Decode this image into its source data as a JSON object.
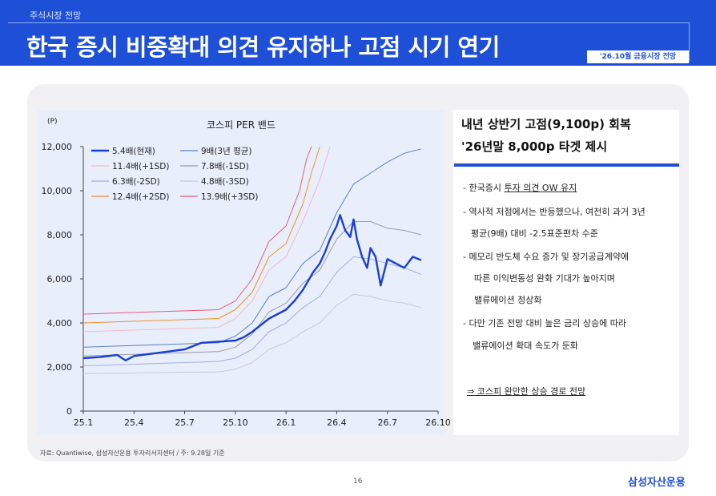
{
  "header": {
    "section": "주식시장 전망",
    "title": "한국 증시 비중확대 의견 유지하나 고점 시기 연기",
    "badge": "'26.10월 금융시장 전망"
  },
  "side": {
    "headline1": "내년 상반기 고점(9,100p) 회복",
    "headline2": "'26년말 8,000p 타겟 제시",
    "b1_prefix": "- 한국증시 ",
    "b1_link": "투자 의견 OW 유지",
    "b2": "- 역사적 저점에서는 반등했으나, 여전히 과거 3년",
    "b2b": "평균(9배) 대비 -2.5표준편차 수준",
    "b3": "-  메모리 반도체 수요 증가 및 장기공급계약에",
    "b3b": "따른 이익변동성 완화 기대가 높아지며",
    "b3c": "밸류에이션 정상화",
    "b4": "- 다만 기존 전망 대비 높은 금리 상승에 따라",
    "b4b": "밸류에이션 확대 속도가 둔화",
    "conclusion": "⇒  코스피 완만한 상승 경로 전망"
  },
  "footer": {
    "source": "자료: Quantiwise, 삼성자산운용 투자리서치센터 / 주: 9.28일 기준",
    "page": "16",
    "logo": "삼성자산운용"
  },
  "chart_data": {
    "type": "line",
    "title": "코스피 PER 밴드",
    "ylabel": "(P)",
    "xlabel": "",
    "ylim": [
      0,
      12000
    ],
    "yticks": [
      "0",
      "2,000",
      "4,000",
      "6,000",
      "8,000",
      "10,000",
      "12,000"
    ],
    "xticks": [
      "25.1",
      "25.4",
      "25.7",
      "25.10",
      "26.1",
      "26.4",
      "26.7",
      "26.10"
    ],
    "xlim": [
      0,
      21
    ],
    "legend_position": "top-left",
    "series": [
      {
        "name": "5.4배(현재)",
        "color": "#1a3fd0",
        "width": 2.4,
        "x": [
          0,
          1,
          2,
          2.5,
          3,
          4,
          5,
          6,
          7,
          8,
          9,
          9.5,
          10,
          10.5,
          11,
          11.5,
          12,
          12.5,
          13,
          13.3,
          13.6,
          14,
          14.3,
          14.6,
          15,
          15.2,
          15.5,
          15.8,
          16,
          16.2,
          16.5,
          16.8,
          17,
          17.3,
          17.6,
          18,
          18.5,
          19,
          19.5,
          20
        ],
        "y": [
          2400,
          2450,
          2550,
          2300,
          2500,
          2600,
          2700,
          2800,
          3100,
          3150,
          3200,
          3350,
          3600,
          3900,
          4200,
          4400,
          4600,
          5000,
          5500,
          5900,
          6300,
          6700,
          7200,
          7800,
          8400,
          8900,
          8200,
          7900,
          8700,
          7800,
          7000,
          6500,
          7400,
          7000,
          5700,
          6900,
          6700,
          6500,
          7000,
          6850
        ]
      },
      {
        "name": "9배(3년 평균)",
        "color": "#5b7fc4",
        "width": 1,
        "x": [
          0,
          2,
          4,
          6,
          8,
          9,
          10,
          11,
          12,
          13,
          14,
          15,
          16,
          17,
          18,
          19,
          20
        ],
        "y": [
          2900,
          2950,
          3000,
          3050,
          3100,
          3400,
          4000,
          5200,
          5600,
          6700,
          7300,
          9000,
          10300,
          10800,
          11300,
          11700,
          11900
        ]
      },
      {
        "name": "11.4배(+1SD)",
        "color": "#f4b8c8",
        "width": 1,
        "x": [
          0,
          2,
          4,
          6,
          8,
          9,
          10,
          11,
          12,
          13,
          14,
          14.6
        ],
        "y": [
          3600,
          3650,
          3700,
          3750,
          3800,
          4200,
          5000,
          6400,
          7000,
          8600,
          10500,
          12000
        ]
      },
      {
        "name": "7.8배(-1SD)",
        "color": "#9a9aa6",
        "width": 1,
        "x": [
          0,
          2,
          4,
          6,
          8,
          9,
          10,
          11,
          12,
          13,
          14,
          15,
          16,
          17,
          18,
          19,
          20
        ],
        "y": [
          2500,
          2550,
          2600,
          2650,
          2700,
          2900,
          3500,
          4500,
          4900,
          5800,
          6400,
          7800,
          8600,
          8600,
          8300,
          8200,
          8000
        ]
      },
      {
        "name": "6.3배(-2SD)",
        "color": "#9fb0e0",
        "width": 1,
        "x": [
          0,
          2,
          4,
          6,
          8,
          9,
          10,
          11,
          12,
          13,
          14,
          15,
          16,
          17,
          18,
          19,
          20
        ],
        "y": [
          2050,
          2100,
          2150,
          2200,
          2250,
          2400,
          2800,
          3600,
          4000,
          4700,
          5200,
          6300,
          7000,
          6900,
          6700,
          6500,
          6200
        ]
      },
      {
        "name": "4.8배(-3SD)",
        "color": "#c9cad4",
        "width": 1,
        "x": [
          0,
          2,
          4,
          6,
          8,
          9,
          10,
          11,
          12,
          13,
          14,
          15,
          16,
          17,
          18,
          19,
          20
        ],
        "y": [
          1700,
          1720,
          1740,
          1760,
          1780,
          1900,
          2200,
          2800,
          3100,
          3600,
          4000,
          4800,
          5300,
          5200,
          5000,
          4900,
          4700
        ]
      },
      {
        "name": "12.4배(+2SD)",
        "color": "#f0902c",
        "width": 1,
        "x": [
          0,
          2,
          4,
          6,
          8,
          9,
          10,
          11,
          12,
          13,
          13.5,
          14
        ],
        "y": [
          4000,
          4050,
          4100,
          4150,
          4200,
          4600,
          5400,
          7000,
          7600,
          9400,
          10800,
          12000
        ]
      },
      {
        "name": "13.9배(+3SD)",
        "color": "#e85a7a",
        "width": 1,
        "x": [
          0,
          2,
          4,
          6,
          8,
          9,
          10,
          11,
          12,
          12.8,
          13.2,
          13.5
        ],
        "y": [
          4400,
          4450,
          4500,
          4550,
          4600,
          5000,
          6000,
          7700,
          8400,
          10000,
          11400,
          12000
        ]
      }
    ]
  }
}
